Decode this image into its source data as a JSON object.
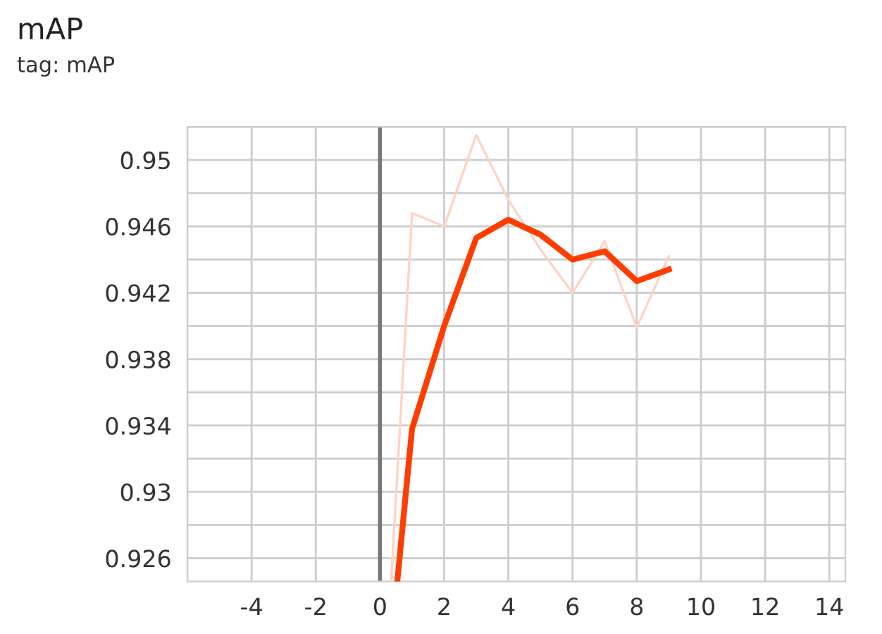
{
  "chart_data": {
    "type": "line",
    "title": "mAP",
    "subtitle": "tag: mAP",
    "series": [
      {
        "color": "#ffd3c4",
        "x": [
          0.35,
          1,
          2,
          3,
          4,
          5,
          6,
          7,
          8,
          9
        ],
        "values": [
          0.9246,
          0.9468,
          0.946,
          0.9515,
          0.9476,
          0.9446,
          0.942,
          0.9451,
          0.9399,
          0.9442
        ]
      },
      {
        "color": "#ff3d00",
        "x": [
          0.54,
          1,
          2,
          3,
          4,
          5,
          6,
          7,
          8,
          9
        ],
        "values": [
          0.9246,
          0.9338,
          0.94,
          0.9453,
          0.9464,
          0.9455,
          0.944,
          0.9445,
          0.9427,
          0.9434
        ]
      }
    ],
    "xlim": [
      -6,
      14.5
    ],
    "xticks": [
      {
        "value": -6,
        "label": null
      },
      -4,
      -2,
      0,
      2,
      4,
      6,
      8,
      10,
      12,
      14
    ],
    "ylim": [
      0.9246,
      0.952
    ],
    "yticks": [
      0.926,
      {
        "value": 0.928,
        "label": null
      },
      0.93,
      {
        "value": 0.932,
        "label": null
      },
      0.934,
      {
        "value": 0.936,
        "label": null
      },
      0.938,
      {
        "value": 0.94,
        "label": null
      },
      0.942,
      {
        "value": 0.944,
        "label": null
      },
      0.946,
      {
        "value": 0.948,
        "label": null
      },
      0.95,
      {
        "value": 0.952,
        "label": null
      }
    ],
    "ref_lines": [
      {
        "axis": "x",
        "value": 0,
        "color": "#777777"
      }
    ],
    "grid": true,
    "legend": false,
    "marker": "none",
    "line_style": "solid"
  }
}
